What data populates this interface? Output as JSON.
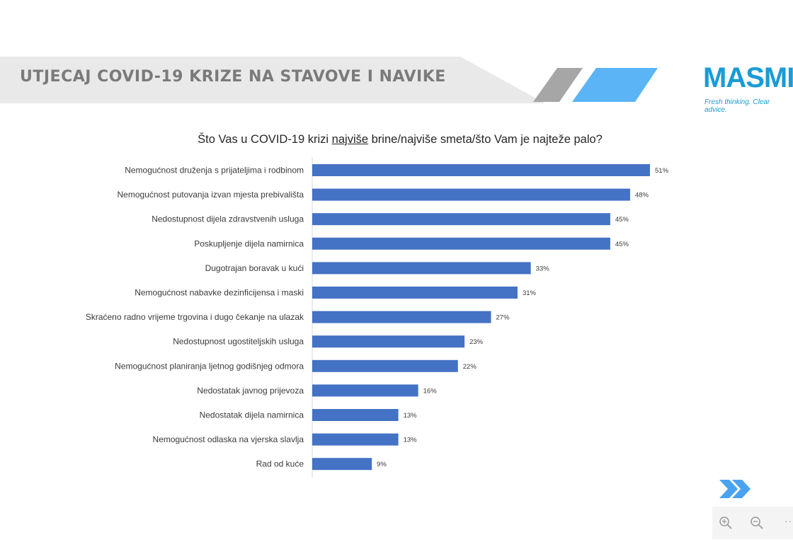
{
  "header": {
    "title": "UTJECAJ COVID-19 KRIZE NA STAVOVE I NAVIKE",
    "band_color": "#e9e9e9",
    "stripe_gray": "#a6a6a6",
    "stripe_blue": "#5ab4f5"
  },
  "logo": {
    "wordmark": "MASMI",
    "tagline": "Fresh thinking. Clear advice.",
    "color": "#1a9bd7"
  },
  "chart_title": {
    "before": "Što Vas u COVID-19 krizi ",
    "underlined": "najviše",
    "after": " brine/najviše smeta/što Vam je najteže palo?"
  },
  "chart_data": {
    "type": "bar",
    "orientation": "horizontal",
    "categories": [
      "Nemogućnost druženja s prijateljima i rodbinom",
      "Nemogućnost putovanja izvan mjesta prebivališta",
      "Nedostupnost dijela zdravstvenih usluga",
      "Poskupljenje dijela namirnica",
      "Dugotrajan boravak u kući",
      "Nemogućnost nabavke dezinficijensa i maski",
      "Skraćeno radno vrijeme trgovina i dugo čekanje na ulazak",
      "Nedostupnost ugostiteljskih usluga",
      "Nemogućnost planiranja ljetnog godišnjeg odmora",
      "Nedostatak javnog prijevoza",
      "Nedostatak dijela namirnica",
      "Nemogućnost odlaska na vjerska slavlja",
      "Rad od kuće"
    ],
    "values": [
      51,
      48,
      45,
      45,
      33,
      31,
      27,
      23,
      22,
      16,
      13,
      13,
      9
    ],
    "value_labels": [
      "51%",
      "48%",
      "45%",
      "45%",
      "33%",
      "31%",
      "27%",
      "23%",
      "22%",
      "16%",
      "13%",
      "13%",
      "9%"
    ],
    "unit": "%",
    "bar_color": "#4472c4",
    "xlim": [
      0,
      51
    ],
    "grid": false,
    "legend": "none"
  },
  "nav": {
    "next_icon": "double-chevron-right-icon",
    "arrow_color": "#4aa3f0",
    "zoom_in_icon": "zoom-in-icon",
    "zoom_out_icon": "zoom-out-icon",
    "more_icon": "more-options-icon",
    "more_glyph": "··"
  }
}
